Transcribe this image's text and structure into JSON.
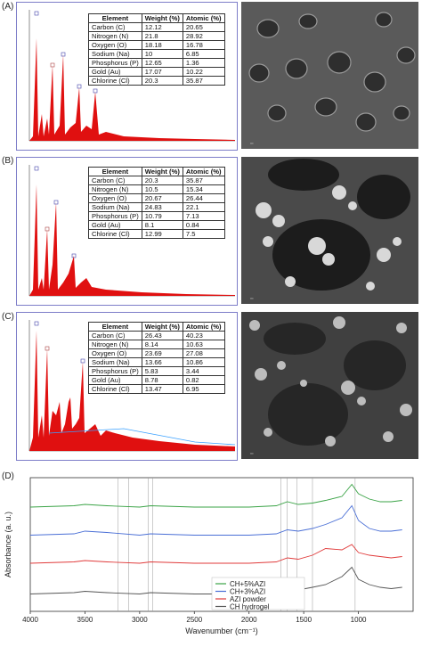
{
  "panels": [
    {
      "label": "(A)",
      "table": {
        "headers": [
          "Element",
          "Weight (%)",
          "Atomic (%)"
        ],
        "rows": [
          [
            "Carbon (C)",
            "12.12",
            "20.65"
          ],
          [
            "Nitrogen (N)",
            "21.8",
            "28.92"
          ],
          [
            "Oxygen (O)",
            "18.18",
            "16.78"
          ],
          [
            "Sodium (Na)",
            "10",
            "6.85"
          ],
          [
            "Phosphorus (P)",
            "12.65",
            "1.36"
          ],
          [
            "Gold (Au)",
            "17.07",
            "10.22"
          ],
          [
            "Chlorine (Cl)",
            "20.3",
            "35.87"
          ]
        ]
      }
    },
    {
      "label": "(B)",
      "table": {
        "headers": [
          "Element",
          "Weight (%)",
          "Atomic (%)"
        ],
        "rows": [
          [
            "Carbon (C)",
            "20.3",
            "35.87"
          ],
          [
            "Nitrogen (N)",
            "10.5",
            "15.34"
          ],
          [
            "Oxygen (O)",
            "20.67",
            "26.44"
          ],
          [
            "Sodium (Na)",
            "24.83",
            "22.1"
          ],
          [
            "Phosphorus (P)",
            "10.79",
            "7.13"
          ],
          [
            "Gold (Au)",
            "8.1",
            "0.84"
          ],
          [
            "Chlorine (Cl)",
            "12.99",
            "7.5"
          ]
        ]
      }
    },
    {
      "label": "(C)",
      "table": {
        "headers": [
          "Element",
          "Weight (%)",
          "Atomic (%)"
        ],
        "rows": [
          [
            "Carbon (C)",
            "26.43",
            "40.23"
          ],
          [
            "Nitrogen (N)",
            "8.14",
            "10.63"
          ],
          [
            "Oxygen (O)",
            "23.69",
            "27.08"
          ],
          [
            "Sodium (Na)",
            "13.66",
            "10.86"
          ],
          [
            "Phosphorus (P)",
            "5.83",
            "3.44"
          ],
          [
            "Gold (Au)",
            "8.78",
            "0.82"
          ],
          [
            "Chlorine (Cl)",
            "13.47",
            "6.95"
          ]
        ]
      }
    }
  ],
  "ftir": {
    "label": "(D)",
    "chart_data": {
      "type": "line",
      "xlabel": "Wavenumber (cm⁻¹)",
      "ylabel": "Absorbance (a. u.)",
      "xlim": [
        4000,
        500
      ],
      "xticks": [
        4000,
        3500,
        3000,
        2500,
        2000,
        1500,
        1000
      ],
      "series": [
        {
          "name": "CH+5%AZI",
          "color": "#3aa346",
          "x": [
            4000,
            3600,
            3500,
            3300,
            3000,
            2900,
            2500,
            2000,
            1750,
            1650,
            1550,
            1420,
            1300,
            1150,
            1060,
            1000,
            900,
            800,
            700,
            600
          ],
          "y": [
            0.78,
            0.79,
            0.8,
            0.79,
            0.78,
            0.79,
            0.78,
            0.78,
            0.79,
            0.82,
            0.8,
            0.81,
            0.83,
            0.86,
            0.95,
            0.88,
            0.84,
            0.82,
            0.82,
            0.83
          ]
        },
        {
          "name": "CH+3%AZI",
          "color": "#4a6fd6",
          "x": [
            4000,
            3600,
            3500,
            3300,
            3000,
            2900,
            2500,
            2000,
            1750,
            1650,
            1550,
            1420,
            1300,
            1150,
            1060,
            1000,
            900,
            800,
            700,
            600
          ],
          "y": [
            0.57,
            0.58,
            0.6,
            0.59,
            0.57,
            0.58,
            0.57,
            0.57,
            0.58,
            0.61,
            0.6,
            0.62,
            0.65,
            0.7,
            0.79,
            0.68,
            0.62,
            0.6,
            0.6,
            0.61
          ]
        },
        {
          "name": "AZI powder",
          "color": "#e03a3a",
          "x": [
            4000,
            3600,
            3500,
            3300,
            3000,
            2900,
            2500,
            2000,
            1750,
            1650,
            1550,
            1420,
            1300,
            1150,
            1060,
            1000,
            900,
            800,
            700,
            600
          ],
          "y": [
            0.36,
            0.37,
            0.38,
            0.37,
            0.36,
            0.37,
            0.36,
            0.36,
            0.37,
            0.4,
            0.39,
            0.42,
            0.47,
            0.46,
            0.5,
            0.44,
            0.42,
            0.41,
            0.4,
            0.41
          ]
        },
        {
          "name": "CH hydrogel",
          "color": "#555555",
          "x": [
            4000,
            3600,
            3500,
            3300,
            3000,
            2900,
            2500,
            2000,
            1750,
            1650,
            1550,
            1420,
            1300,
            1150,
            1060,
            1000,
            900,
            800,
            700,
            600
          ],
          "y": [
            0.13,
            0.14,
            0.15,
            0.14,
            0.13,
            0.14,
            0.13,
            0.13,
            0.14,
            0.18,
            0.16,
            0.18,
            0.2,
            0.26,
            0.33,
            0.24,
            0.2,
            0.18,
            0.17,
            0.18
          ]
        }
      ]
    }
  }
}
